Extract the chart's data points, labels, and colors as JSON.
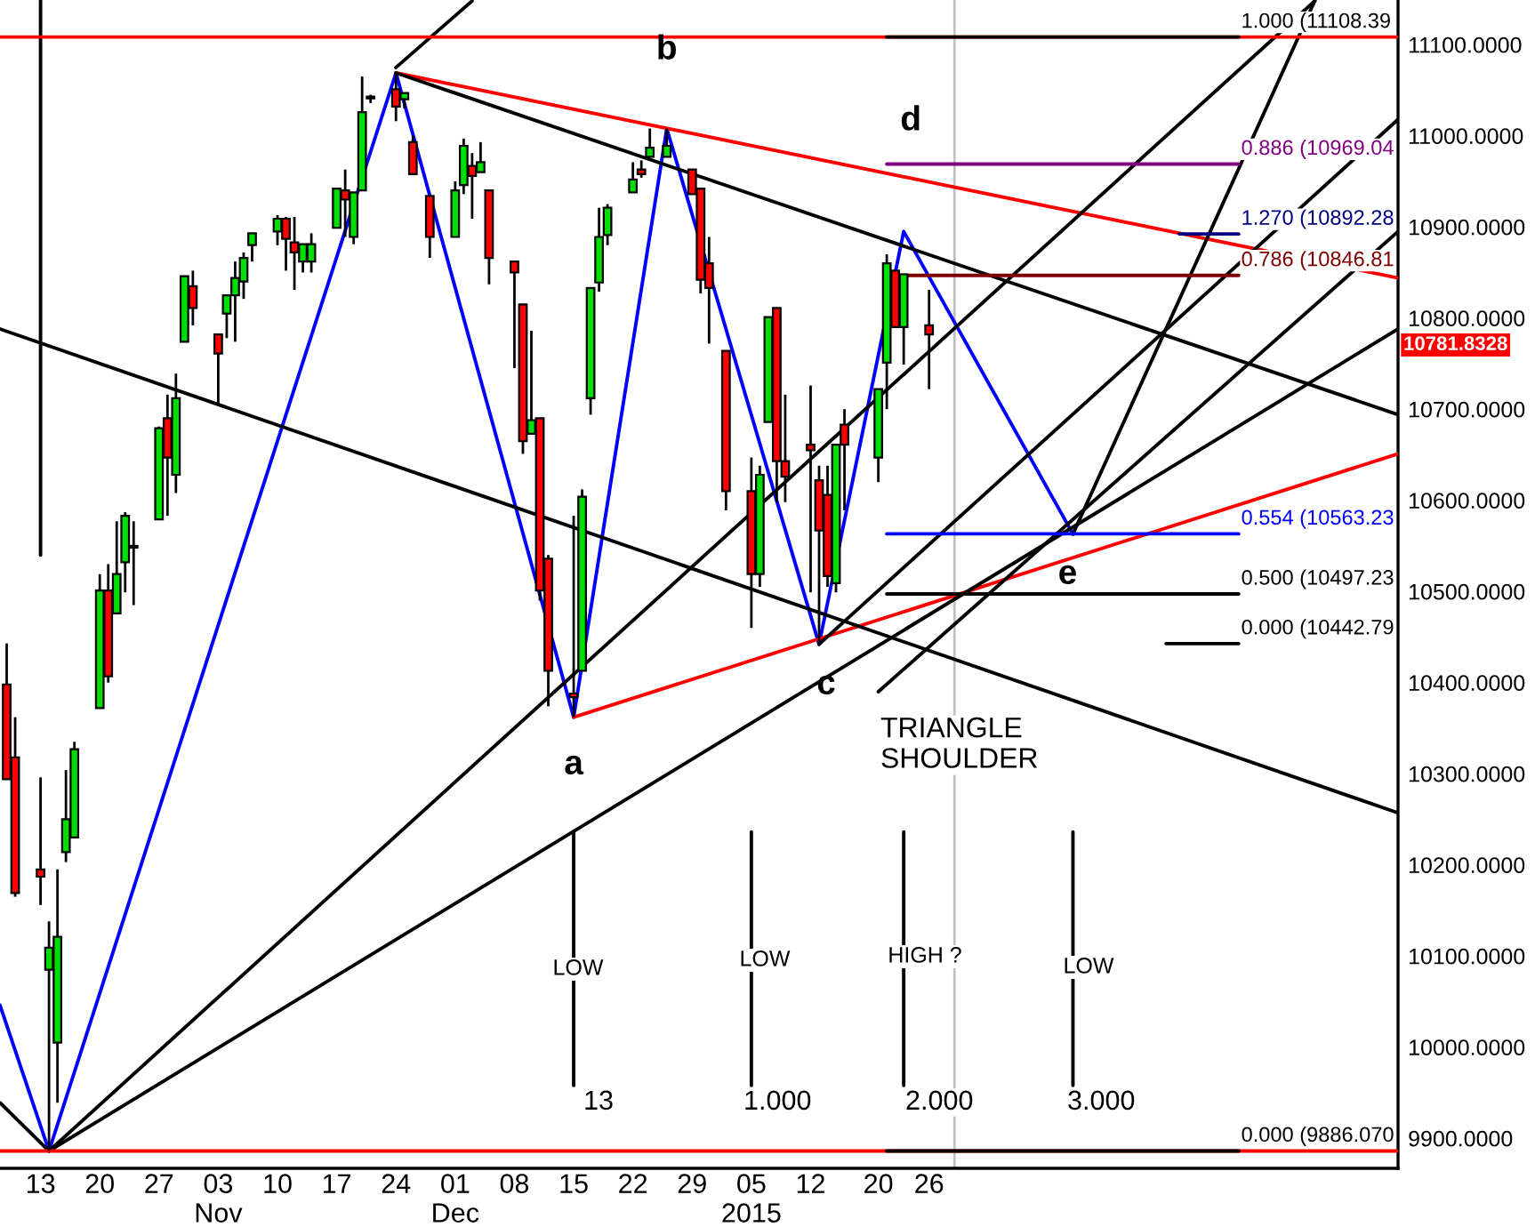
{
  "chart_data": {
    "type": "candlestick",
    "x": [
      "2014-10-09",
      "2014-10-10",
      "2014-10-13",
      "2014-10-14",
      "2014-10-15",
      "2014-10-16",
      "2014-10-17",
      "2014-10-20",
      "2014-10-21",
      "2014-10-22",
      "2014-10-23",
      "2014-10-24",
      "2014-10-27",
      "2014-10-28",
      "2014-10-29",
      "2014-10-30",
      "2014-10-31",
      "2014-11-03",
      "2014-11-04",
      "2014-11-05",
      "2014-11-06",
      "2014-11-07",
      "2014-11-10",
      "2014-11-11",
      "2014-11-12",
      "2014-11-13",
      "2014-11-14",
      "2014-11-17",
      "2014-11-18",
      "2014-11-19",
      "2014-11-20",
      "2014-11-21",
      "2014-11-24",
      "2014-11-25",
      "2014-11-26",
      "2014-11-28",
      "2014-12-01",
      "2014-12-02",
      "2014-12-03",
      "2014-12-04",
      "2014-12-05",
      "2014-12-08",
      "2014-12-09",
      "2014-12-10",
      "2014-12-11",
      "2014-12-12",
      "2014-12-15",
      "2014-12-16",
      "2014-12-17",
      "2014-12-18",
      "2014-12-19",
      "2014-12-22",
      "2014-12-23",
      "2014-12-24",
      "2014-12-26",
      "2014-12-29",
      "2014-12-30",
      "2014-12-31",
      "2015-01-02",
      "2015-01-05",
      "2015-01-06",
      "2015-01-07",
      "2015-01-08",
      "2015-01-09",
      "2015-01-12",
      "2015-01-13",
      "2015-01-14",
      "2015-01-15",
      "2015-01-16",
      "2015-01-20",
      "2015-01-21",
      "2015-01-22",
      "2015-01-23",
      "2015-01-26"
    ],
    "ohlc": [
      [
        10398,
        10443,
        10294,
        10294
      ],
      [
        10318,
        10362,
        10165,
        10169
      ],
      [
        10195,
        10296,
        10156,
        10187
      ],
      [
        10085,
        10138,
        9886,
        10109
      ],
      [
        10005,
        10195,
        9939,
        10121
      ],
      [
        10214,
        10304,
        10203,
        10250
      ],
      [
        10230,
        10335,
        10230,
        10327
      ],
      [
        10372,
        10519,
        10372,
        10501
      ],
      [
        10501,
        10530,
        10400,
        10407
      ],
      [
        10476,
        10577,
        10476,
        10519
      ],
      [
        10532,
        10587,
        10499,
        10583
      ],
      [
        10548,
        10577,
        10485,
        10550
      ],
      [
        10579,
        10681,
        10579,
        10679
      ],
      [
        10690,
        10716,
        10583,
        10647
      ],
      [
        10628,
        10739,
        10608,
        10712
      ],
      [
        10774,
        10846,
        10774,
        10846
      ],
      [
        10835,
        10852,
        10792,
        10811
      ],
      [
        10782,
        10782,
        10704,
        10761
      ],
      [
        10805,
        10825,
        10778,
        10825
      ],
      [
        10825,
        10862,
        10774,
        10844
      ],
      [
        10840,
        10872,
        10821,
        10866
      ],
      [
        10880,
        10893,
        10862,
        10893
      ],
      [
        10895,
        10913,
        10880,
        10909
      ],
      [
        10909,
        10911,
        10852,
        10887
      ],
      [
        10883,
        10911,
        10831,
        10872
      ],
      [
        10862,
        10881,
        10850,
        10881
      ],
      [
        10862,
        10893,
        10850,
        10881
      ],
      [
        10899,
        10942,
        10899,
        10942
      ],
      [
        10940,
        10963,
        10889,
        10930
      ],
      [
        10889,
        10938,
        10881,
        10938
      ],
      [
        10940,
        11065,
        10940,
        11026
      ],
      [
        11041,
        11045,
        11036,
        11043
      ],
      [
        11051,
        11069,
        11016,
        11032
      ],
      [
        11040,
        11047,
        11030,
        11047
      ],
      [
        10993,
        11000,
        10958,
        10958
      ],
      [
        10934,
        10934,
        10866,
        10889
      ],
      [
        10889,
        10950,
        10889,
        10940
      ],
      [
        10946,
        10997,
        10936,
        10989
      ],
      [
        10967,
        10981,
        10909,
        10956
      ],
      [
        10960,
        10993,
        10960,
        10971
      ],
      [
        10940,
        10940,
        10837,
        10866
      ],
      [
        10862,
        10862,
        10745,
        10850
      ],
      [
        10815,
        10815,
        10651,
        10665
      ],
      [
        10673,
        10786,
        10673,
        10688
      ],
      [
        10690,
        10690,
        10490,
        10501
      ],
      [
        10536,
        10540,
        10374,
        10413
      ],
      [
        10388,
        10583,
        10362,
        10384
      ],
      [
        10413,
        10612,
        10413,
        10604
      ],
      [
        10712,
        10833,
        10694,
        10833
      ],
      [
        10839,
        10921,
        10829,
        10889
      ],
      [
        10891,
        10925,
        10880,
        10921
      ],
      [
        10938,
        10971,
        10938,
        10952
      ],
      [
        10963,
        10973,
        10954,
        10958
      ],
      [
        10977,
        11008,
        10977,
        10987
      ],
      [
        10977,
        11008,
        10977,
        10989
      ],
      [
        10963,
        10963,
        10936,
        10936
      ],
      [
        10942,
        10942,
        10827,
        10842
      ],
      [
        10860,
        10889,
        10772,
        10833
      ],
      [
        10764,
        10764,
        10589,
        10610
      ],
      [
        10610,
        10647,
        10460,
        10519
      ],
      [
        10519,
        10638,
        10505,
        10628
      ],
      [
        10686,
        10801,
        10686,
        10801
      ],
      [
        10811,
        10811,
        10598,
        10643
      ],
      [
        10643,
        10716,
        10598,
        10626
      ],
      [
        10661,
        10726,
        10499,
        10655
      ],
      [
        10622,
        10638,
        10442,
        10567
      ],
      [
        10606,
        10638,
        10505,
        10517
      ],
      [
        10509,
        10661,
        10499,
        10661
      ],
      [
        10683,
        10700,
        10589,
        10661
      ],
      [
        10647,
        10722,
        10620,
        10722
      ],
      [
        10751,
        10870,
        10700,
        10860
      ],
      [
        10852,
        10852,
        10790,
        10790
      ],
      [
        10790,
        10848,
        10749,
        10848
      ],
      [
        10792,
        10831,
        10722,
        10782
      ]
    ],
    "series": [
      {
        "type": "line",
        "color": "#0000ff",
        "x": [
          "2014-10-08T05:00",
          "2014-10-14",
          "2014-11-24",
          "2014-12-15",
          "2014-12-26",
          "2015-01-13",
          "2015-01-23",
          "2015-02-12"
        ],
        "values": [
          10046,
          9886,
          11069,
          10362,
          11008,
          10442,
          10895,
          10563
        ]
      },
      {
        "type": "line",
        "color": "#ff0000",
        "x": [
          "2014-11-24",
          "2015-03-22T10:00"
        ],
        "values": [
          11069,
          10844
        ]
      },
      {
        "type": "line",
        "color": "#ff0000",
        "x": [
          "2014-12-15",
          "2015-03-22T10:00"
        ],
        "values": [
          10362,
          10651
        ]
      },
      {
        "type": "line",
        "color": "#000000",
        "x": [
          "2014-11-24",
          "2015-03-22T10:00"
        ],
        "values": [
          11069,
          10694
        ]
      },
      {
        "type": "line",
        "color": "#000000",
        "x": [
          "2014-10-08T05:00",
          "2015-03-22T10:00"
        ],
        "values": [
          10788,
          10257
        ]
      },
      {
        "type": "line",
        "color": "#000000",
        "x": [
          "2014-10-14",
          "2015-03-22T10:00"
        ],
        "values": [
          9886,
          10788
        ]
      },
      {
        "type": "line",
        "color": "#000000",
        "x": [
          "2015-02-12",
          "2015-03-12T14:00"
        ],
        "values": [
          10563,
          11148
        ]
      },
      {
        "type": "line",
        "color": "#000000",
        "x": [
          "2014-10-14",
          "2015-03-12T14:00"
        ],
        "values": [
          9886,
          11148
        ]
      },
      {
        "type": "line",
        "color": "#000000",
        "x": [
          "2015-01-13",
          "2015-03-22T10:00"
        ],
        "values": [
          10442,
          11018
        ]
      },
      {
        "type": "line",
        "color": "#000000",
        "x": [
          "2015-01-20",
          "2015-03-22T10:00"
        ],
        "values": [
          10390,
          10895
        ]
      },
      {
        "type": "line",
        "color": "#000000",
        "x": [
          "2014-10-08T05:00",
          "2014-10-14"
        ],
        "values": [
          9939,
          9886
        ]
      },
      {
        "type": "line",
        "color": "#000000",
        "x": [
          "2014-11-24",
          "2014-12-03"
        ],
        "values": [
          11075,
          11148
        ]
      },
      {
        "type": "line",
        "color": "#000000",
        "x": [
          "2014-10-13",
          "2014-10-13"
        ],
        "values": [
          10540,
          11148
        ]
      },
      {
        "type": "line",
        "color": "#000000",
        "x": [
          "2014-12-15",
          "2014-12-15"
        ],
        "values": [
          9958,
          10236
        ]
      },
      {
        "type": "line",
        "color": "#000000",
        "x": [
          "2015-01-05",
          "2015-01-05"
        ],
        "values": [
          9958,
          10236
        ]
      },
      {
        "type": "line",
        "color": "#000000",
        "x": [
          "2015-01-23",
          "2015-01-23"
        ],
        "values": [
          9958,
          10236
        ]
      },
      {
        "type": "line",
        "color": "#000000",
        "x": [
          "2015-02-12",
          "2015-02-12"
        ],
        "values": [
          9958,
          10236
        ]
      },
      {
        "type": "line",
        "color": "#ff0000",
        "x": [
          "2014-10-08T05:00",
          "2015-03-22T10:00"
        ],
        "values": [
          11108.39,
          11108.39
        ]
      },
      {
        "type": "line",
        "color": "#ff0000",
        "x": [
          "2014-10-08T05:00",
          "2015-03-22T10:00"
        ],
        "values": [
          9886.07,
          9886.07
        ]
      },
      {
        "type": "line",
        "color": "#000000",
        "name": "1.000 (11108.39",
        "x": [
          "2015-01-21",
          "2015-03-03T14:00"
        ],
        "values": [
          11108.39,
          11108.39
        ]
      },
      {
        "type": "line",
        "color": "#800080",
        "name": "0.886 (10969.04",
        "x": [
          "2015-01-21",
          "2015-03-03T14:00"
        ],
        "values": [
          10969.04,
          10969.04
        ]
      },
      {
        "type": "line",
        "color": "#000080",
        "name": "1.270 (10892.28",
        "x": [
          "2015-02-24T14:00",
          "2015-03-03T14:00"
        ],
        "values": [
          10892.28,
          10892.28
        ]
      },
      {
        "type": "line",
        "color": "#800000",
        "name": "0.786 (10846.81",
        "x": [
          "2015-01-21",
          "2015-03-03T14:00"
        ],
        "values": [
          10846.81,
          10846.81
        ]
      },
      {
        "type": "line",
        "color": "#0000ff",
        "name": "0.554 (10563.23",
        "x": [
          "2015-01-21",
          "2015-03-03T14:00"
        ],
        "values": [
          10563.23,
          10563.23
        ]
      },
      {
        "type": "line",
        "color": "#000000",
        "name": "0.500 (10497.23",
        "x": [
          "2015-01-21",
          "2015-03-03T14:00"
        ],
        "values": [
          10497.23,
          10497.23
        ]
      },
      {
        "type": "line",
        "color": "#000000",
        "name": "0.000 (10442.79",
        "x": [
          "2015-02-23",
          "2015-03-03T14:00"
        ],
        "values": [
          10442.79,
          10442.79
        ]
      },
      {
        "type": "line",
        "color": "#000000",
        "name": "0.000 (9886.070",
        "x": [
          "2015-01-21",
          "2015-03-03T14:00"
        ],
        "values": [
          9886.07,
          9886.07
        ]
      }
    ],
    "ref_lines": [
      {
        "axis": "x",
        "value": "2015-01-29",
        "color": "#c0c0c0"
      }
    ],
    "annotations": [
      {
        "text": "a",
        "x": "2014-12-15",
        "y": 10362
      },
      {
        "text": "b",
        "x": "2014-12-26",
        "y": 11008
      },
      {
        "text": "c",
        "x": "2015-01-13",
        "y": 10442
      },
      {
        "text": "d",
        "x": "2015-01-23",
        "y": 10895
      },
      {
        "text": "e",
        "x": "2015-02-12",
        "y": 10563
      },
      "TRIANGLE\nSHOULDER",
      "LOW",
      "LOW",
      "HIGH ?",
      "LOW",
      "13",
      "1.000",
      "2.000",
      "3.000",
      "10781.8328"
    ],
    "xlim": [
      "2014-10-08T05:00",
      "2015-03-22T10:00"
    ],
    "xticks": [
      {
        "value": "2014-10-13",
        "label": "13"
      },
      {
        "value": "2014-10-20",
        "label": "20"
      },
      {
        "value": "2014-10-27",
        "label": "27"
      },
      {
        "value": "2014-11-03",
        "label": "03\nNov"
      },
      {
        "value": "2014-11-10",
        "label": "10"
      },
      {
        "value": "2014-11-17",
        "label": "17"
      },
      {
        "value": "2014-11-24",
        "label": "24"
      },
      {
        "value": "2014-12-01",
        "label": "01\nDec"
      },
      {
        "value": "2014-12-08",
        "label": "08"
      },
      {
        "value": "2014-12-15",
        "label": "15"
      },
      {
        "value": "2014-12-22",
        "label": "22"
      },
      {
        "value": "2014-12-29",
        "label": "29"
      },
      {
        "value": "2015-01-05",
        "label": "05\n2015"
      },
      {
        "value": "2015-01-12",
        "label": "12"
      },
      {
        "value": "2015-01-20",
        "label": "20"
      },
      {
        "value": "2015-01-26",
        "label": "26"
      }
    ],
    "ylim": [
      9867,
      11149
    ],
    "yticks": [
      {
        "value": 9900,
        "label": "9900.0000"
      },
      {
        "value": 10000,
        "label": "10000.0000"
      },
      {
        "value": 10100,
        "label": "10100.0000"
      },
      {
        "value": 10200,
        "label": "10200.0000"
      },
      {
        "value": 10300,
        "label": "10300.0000"
      },
      {
        "value": 10400,
        "label": "10400.0000"
      },
      {
        "value": 10500,
        "label": "10500.0000"
      },
      {
        "value": 10600,
        "label": "10600.0000"
      },
      {
        "value": 10700,
        "label": "10700.0000"
      },
      {
        "value": 10800,
        "label": "10800.0000"
      },
      {
        "value": 10900,
        "label": "10900.0000"
      },
      {
        "value": 11000,
        "label": "11000.0000"
      },
      {
        "value": 11100,
        "label": "11100.0000"
      }
    ]
  }
}
